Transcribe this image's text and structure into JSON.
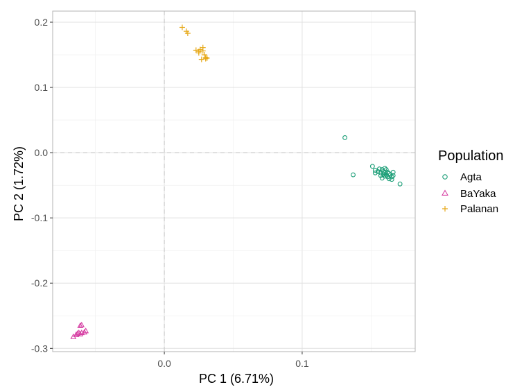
{
  "chart_data": {
    "type": "scatter",
    "xlabel": "PC 1 (6.71%)",
    "ylabel": "PC 2 (1.72%)",
    "xlim": [
      -0.081,
      0.182
    ],
    "ylim": [
      -0.305,
      0.217
    ],
    "x_ticks": [
      0.0,
      0.1
    ],
    "x_tick_labels": [
      "0.0",
      "0.1"
    ],
    "y_ticks": [
      0.2,
      0.1,
      0.0,
      -0.1,
      -0.2,
      -0.3
    ],
    "y_tick_labels": [
      "0.2",
      "0.1",
      "0.0",
      "-0.1",
      "-0.2",
      "-0.3"
    ],
    "grid": true,
    "zero_lines": true,
    "legend": {
      "title": "Population",
      "position": "right"
    },
    "series": [
      {
        "name": "Agta",
        "marker": "circle",
        "color": "#1b9e77",
        "points": [
          [
            0.131,
            0.023
          ],
          [
            0.137,
            -0.034
          ],
          [
            0.151,
            -0.021
          ],
          [
            0.153,
            -0.027
          ],
          [
            0.153,
            -0.031
          ],
          [
            0.155,
            -0.029
          ],
          [
            0.156,
            -0.025
          ],
          [
            0.157,
            -0.031
          ],
          [
            0.157,
            -0.035
          ],
          [
            0.158,
            -0.026
          ],
          [
            0.158,
            -0.039
          ],
          [
            0.159,
            -0.029
          ],
          [
            0.159,
            -0.033
          ],
          [
            0.16,
            -0.031
          ],
          [
            0.16,
            -0.036
          ],
          [
            0.161,
            -0.026
          ],
          [
            0.161,
            -0.034
          ],
          [
            0.162,
            -0.03
          ],
          [
            0.162,
            -0.037
          ],
          [
            0.163,
            -0.032
          ],
          [
            0.163,
            -0.04
          ],
          [
            0.164,
            -0.034
          ],
          [
            0.165,
            -0.037
          ],
          [
            0.165,
            -0.041
          ],
          [
            0.166,
            -0.03
          ],
          [
            0.166,
            -0.035
          ],
          [
            0.171,
            -0.048
          ],
          [
            0.16,
            -0.024
          ]
        ]
      },
      {
        "name": "BaYaka",
        "marker": "triangle",
        "color": "#d63fa3",
        "points": [
          [
            -0.066,
            -0.282
          ],
          [
            -0.064,
            -0.279
          ],
          [
            -0.063,
            -0.277
          ],
          [
            -0.062,
            -0.276
          ],
          [
            -0.061,
            -0.278
          ],
          [
            -0.061,
            -0.265
          ],
          [
            -0.06,
            -0.276
          ],
          [
            -0.06,
            -0.264
          ],
          [
            -0.058,
            -0.275
          ],
          [
            -0.057,
            -0.273
          ]
        ]
      },
      {
        "name": "Palanan",
        "marker": "plus",
        "color": "#e6a817",
        "points": [
          [
            0.013,
            0.192
          ],
          [
            0.016,
            0.186
          ],
          [
            0.017,
            0.183
          ],
          [
            0.023,
            0.157
          ],
          [
            0.025,
            0.155
          ],
          [
            0.026,
            0.158
          ],
          [
            0.027,
            0.143
          ],
          [
            0.028,
            0.156
          ],
          [
            0.028,
            0.161
          ],
          [
            0.029,
            0.15
          ],
          [
            0.03,
            0.144
          ],
          [
            0.03,
            0.146
          ],
          [
            0.031,
            0.145
          ],
          [
            0.025,
            0.153
          ]
        ]
      }
    ]
  }
}
